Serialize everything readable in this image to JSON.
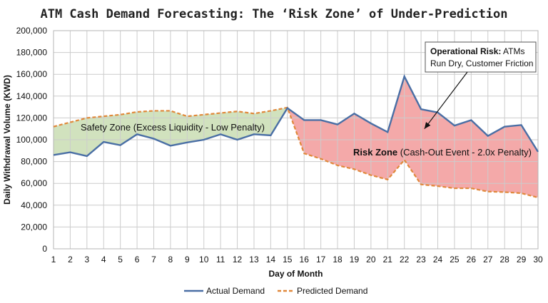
{
  "chart_data": {
    "type": "line",
    "title": "ATM Cash Demand Forecasting: The ‘Risk Zone’ of Under-Prediction",
    "xlabel": "Day of Month",
    "ylabel": "Daily Withdrawal Volume (KWD)",
    "ylim": [
      0,
      200000
    ],
    "yticks": [
      0,
      20000,
      40000,
      60000,
      80000,
      100000,
      120000,
      140000,
      160000,
      180000,
      200000
    ],
    "ytick_labels": [
      "0",
      "20,000",
      "40,000",
      "60,000",
      "80,000",
      "100,000",
      "120,000",
      "140,000",
      "160,000",
      "180,000",
      "200,000"
    ],
    "x": [
      1,
      2,
      3,
      4,
      5,
      6,
      7,
      8,
      9,
      10,
      11,
      12,
      13,
      14,
      15,
      16,
      17,
      18,
      19,
      20,
      21,
      22,
      23,
      24,
      25,
      26,
      27,
      28,
      29,
      30
    ],
    "grid": true,
    "legend_position": "bottom",
    "series": [
      {
        "name": "Actual Demand",
        "color": "#4a6fa5",
        "style": "solid",
        "values": [
          86000,
          88500,
          85000,
          98000,
          95000,
          105000,
          101000,
          94500,
          97500,
          100000,
          105000,
          100000,
          105000,
          104000,
          129000,
          118000,
          118000,
          114000,
          124000,
          115000,
          107000,
          158000,
          128000,
          125000,
          113000,
          118000,
          103500,
          112000,
          113500,
          89000
        ]
      },
      {
        "name": "Predicted Demand",
        "color": "#e0883a",
        "style": "dashed",
        "values": [
          112000,
          116000,
          120000,
          121500,
          123000,
          125500,
          126500,
          126500,
          121500,
          123000,
          124500,
          126000,
          124000,
          126500,
          129500,
          87500,
          82500,
          76500,
          73000,
          67500,
          63500,
          81500,
          59000,
          57500,
          55500,
          55500,
          52500,
          52000,
          51000,
          47000
        ]
      }
    ],
    "zones": [
      {
        "label": "Safety Zone (Excess Liquidity - Low Penalty)",
        "color": "#c9ddb3",
        "from_day": 1,
        "to_day": 15
      },
      {
        "label_bold": "Risk Zone",
        "label_rest": " (Cash-Out Event - 2.0x Penalty)",
        "color": "#f29a9a",
        "from_day": 15,
        "to_day": 30
      }
    ],
    "annotation": {
      "bold": "Operational Risk:",
      "line1_rest": " ATMs",
      "line2": "Run Dry, Customer Friction",
      "points_to_day": 23.2,
      "points_to_value": 110000
    }
  }
}
